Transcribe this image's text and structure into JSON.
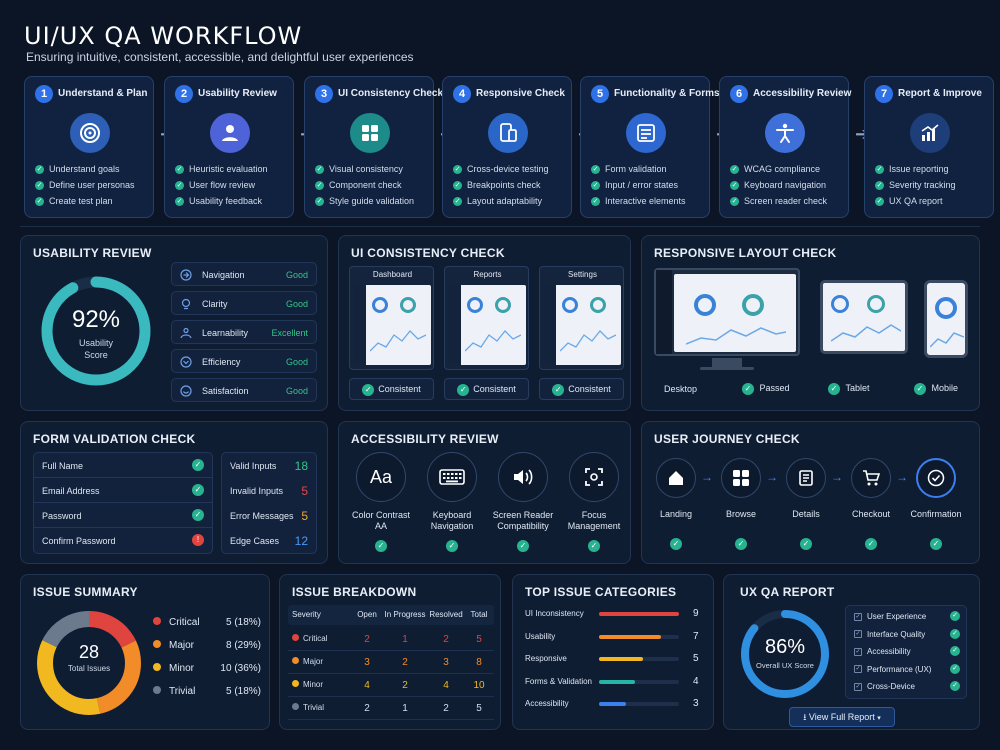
{
  "header": {
    "title": "UI/UX QA WORKFLOW",
    "subtitle": "Ensuring intuitive, consistent, accessible, and delightful user experiences"
  },
  "steps": [
    {
      "num": "1",
      "title": "Understand & Plan",
      "icon": "target-icon",
      "color": "#2c5fb5",
      "items": [
        "Understand goals",
        "Define user personas",
        "Create test plan"
      ]
    },
    {
      "num": "2",
      "title": "Usability Review",
      "icon": "user-icon",
      "color": "#4e63d8",
      "items": [
        "Heuristic evaluation",
        "User flow review",
        "Usability feedback"
      ]
    },
    {
      "num": "3",
      "title": "UI Consistency Check",
      "icon": "grid-icon",
      "color": "#1c8b8a",
      "items": [
        "Visual consistency",
        "Component check",
        "Style guide validation"
      ]
    },
    {
      "num": "4",
      "title": "Responsive Check",
      "icon": "devices-icon",
      "color": "#2a66c8",
      "items": [
        "Cross-device testing",
        "Breakpoints check",
        "Layout adaptability"
      ]
    },
    {
      "num": "5",
      "title": "Functionality & Forms",
      "icon": "form-icon",
      "color": "#2e67d0",
      "items": [
        "Form validation",
        "Input / error states",
        "Interactive elements"
      ]
    },
    {
      "num": "6",
      "title": "Accessibility Review",
      "icon": "accessibility-icon",
      "color": "#3f6fd8",
      "items": [
        "WCAG compliance",
        "Keyboard navigation",
        "Screen reader check"
      ]
    },
    {
      "num": "7",
      "title": "Report & Improve",
      "icon": "chart-up-icon",
      "color": "#1d3e78",
      "items": [
        "Issue reporting",
        "Severity tracking",
        "UX QA report"
      ]
    }
  ],
  "usability": {
    "title": "USABILITY REVIEW",
    "score": "92%",
    "score_value": 92,
    "score_label_1": "Usability",
    "score_label_2": "Score",
    "items": [
      {
        "label": "Navigation",
        "status": "Good",
        "icon": "navigation-icon"
      },
      {
        "label": "Clarity",
        "status": "Good",
        "icon": "clarity-icon"
      },
      {
        "label": "Learnability",
        "status": "Excellent",
        "icon": "learnability-icon"
      },
      {
        "label": "Efficiency",
        "status": "Good",
        "icon": "efficiency-icon"
      },
      {
        "label": "Satisfaction",
        "status": "Good",
        "icon": "satisfaction-icon"
      }
    ]
  },
  "consistency": {
    "title": "UI CONSISTENCY CHECK",
    "screens": [
      {
        "name": "Dashboard",
        "status": "Consistent"
      },
      {
        "name": "Reports",
        "status": "Consistent"
      },
      {
        "name": "Settings",
        "status": "Consistent"
      }
    ]
  },
  "responsive": {
    "title": "RESPONSIVE LAYOUT CHECK",
    "labels": {
      "desktop": "Desktop",
      "passed": "Passed",
      "tablet": "Tablet",
      "mobile": "Mobile"
    }
  },
  "form_validation": {
    "title": "FORM VALIDATION CHECK",
    "fields": [
      {
        "label": "Full Name",
        "ok": true
      },
      {
        "label": "Email Address",
        "ok": true
      },
      {
        "label": "Password",
        "ok": true
      },
      {
        "label": "Confirm Password",
        "ok": false
      }
    ],
    "stats": [
      {
        "label": "Valid Inputs",
        "value": "18",
        "color": "#35c48a"
      },
      {
        "label": "Invalid Inputs",
        "value": "5",
        "color": "#e5484d"
      },
      {
        "label": "Error Messages",
        "value": "5",
        "color": "#f0a531"
      },
      {
        "label": "Edge Cases",
        "value": "12",
        "color": "#4a9af5"
      }
    ]
  },
  "accessibility": {
    "title": "ACCESSIBILITY REVIEW",
    "items": [
      {
        "line1": "Color Contrast",
        "line2": "AA",
        "icon": "text-contrast-icon",
        "glyph": "Aa"
      },
      {
        "line1": "Keyboard",
        "line2": "Navigation",
        "icon": "keyboard-icon",
        "glyph": ""
      },
      {
        "line1": "Screen Reader",
        "line2": "Compatibility",
        "icon": "speaker-icon",
        "glyph": ""
      },
      {
        "line1": "Focus",
        "line2": "Management",
        "icon": "focus-icon",
        "glyph": ""
      }
    ]
  },
  "journey": {
    "title": "USER JOURNEY CHECK",
    "steps": [
      {
        "label": "Landing",
        "icon": "home-icon"
      },
      {
        "label": "Browse",
        "icon": "grid-icon"
      },
      {
        "label": "Details",
        "icon": "document-icon"
      },
      {
        "label": "Checkout",
        "icon": "cart-icon"
      },
      {
        "label": "Confirmation",
        "icon": "check-circle-icon"
      }
    ]
  },
  "issue_summary": {
    "title": "ISSUE SUMMARY",
    "total": "28",
    "total_label": "Total Issues",
    "items": [
      {
        "label": "Critical",
        "value": "5 (18%)",
        "count": 5,
        "color": "#e0443e"
      },
      {
        "label": "Major",
        "value": "8 (29%)",
        "count": 8,
        "color": "#f28c28"
      },
      {
        "label": "Minor",
        "value": "10 (36%)",
        "count": 10,
        "color": "#f2b81f"
      },
      {
        "label": "Trivial",
        "value": "5 (18%)",
        "count": 5,
        "color": "#6c7a8e"
      }
    ]
  },
  "issue_breakdown": {
    "title": "ISSUE BREAKDOWN",
    "headers": [
      "Severity",
      "Open",
      "In Progress",
      "Resolved",
      "Total"
    ],
    "rows": [
      {
        "severity": "Critical",
        "color": "#e0443e",
        "open": "2",
        "in_progress": "1",
        "resolved": "2",
        "total": "5"
      },
      {
        "severity": "Major",
        "color": "#f28c28",
        "open": "3",
        "in_progress": "2",
        "resolved": "3",
        "total": "8"
      },
      {
        "severity": "Minor",
        "color": "#f2b81f",
        "open": "4",
        "in_progress": "2",
        "resolved": "4",
        "total": "10"
      },
      {
        "severity": "Trivial",
        "color": "#6c7a8e",
        "open": "2",
        "in_progress": "1",
        "resolved": "2",
        "total": "5"
      }
    ]
  },
  "top_categories": {
    "title": "TOP ISSUE CATEGORIES",
    "max": 9,
    "items": [
      {
        "label": "UI Inconsistency",
        "value": 9,
        "color": "#e0443e"
      },
      {
        "label": "Usability",
        "value": 7,
        "color": "#f28c28"
      },
      {
        "label": "Responsive",
        "value": 5,
        "color": "#f2b81f"
      },
      {
        "label": "Forms & Validation",
        "value": 4,
        "color": "#25b5a6"
      },
      {
        "label": "Accessibility",
        "value": 3,
        "color": "#3b7ff0"
      }
    ]
  },
  "report": {
    "title": "UX QA REPORT",
    "score": "86%",
    "score_value": 86,
    "score_label": "Overall UX Score",
    "items": [
      "User Experience",
      "Interface Quality",
      "Accessibility",
      "Performance (UX)",
      "Cross-Device"
    ],
    "button": "View Full Report"
  }
}
